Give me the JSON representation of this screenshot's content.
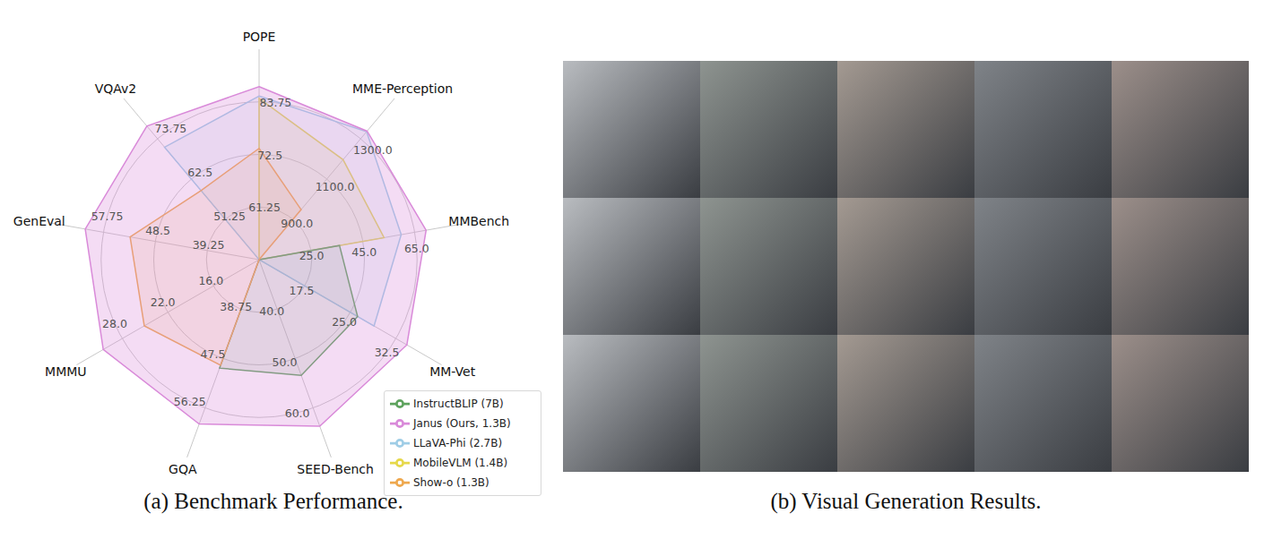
{
  "chart_data": {
    "type": "radar",
    "title": "(a) Benchmark Performance.",
    "axes": [
      {
        "label": "POPE",
        "ylim": [
          50,
          95
        ],
        "yticks": [
          61.25,
          72.5,
          83.75
        ]
      },
      {
        "label": "MME-Perception",
        "ylim": [
          700,
          1500
        ],
        "yticks": [
          {
            "value": 900,
            "label": "900.0"
          },
          {
            "value": 1100,
            "label": "1100.0"
          },
          {
            "value": 1300,
            "label": "1300.0"
          }
        ]
      },
      {
        "label": "MMBench",
        "ylim": [
          5,
          85
        ],
        "yticks": [
          {
            "value": 25,
            "label": "25.0"
          },
          {
            "value": 45,
            "label": "45.0"
          },
          {
            "value": 65,
            "label": "65.0"
          }
        ]
      },
      {
        "label": "MM-Vet",
        "ylim": [
          10,
          40
        ],
        "yticks": [
          17.5,
          {
            "value": 25,
            "label": "25.0"
          },
          32.5
        ]
      },
      {
        "label": "SEED-Bench",
        "ylim": [
          30,
          70
        ],
        "yticks": [
          {
            "value": 40,
            "label": "40.0"
          },
          {
            "value": 50,
            "label": "50.0"
          },
          {
            "value": 60,
            "label": "60.0"
          }
        ]
      },
      {
        "label": "GQA",
        "ylim": [
          30,
          65
        ],
        "yticks": [
          38.75,
          47.5,
          56.25
        ]
      },
      {
        "label": "MMMU",
        "ylim": [
          10,
          34
        ],
        "yticks": [
          {
            "value": 16,
            "label": "16.0"
          },
          {
            "value": 22,
            "label": "22.0"
          },
          {
            "value": 28,
            "label": "28.0"
          }
        ]
      },
      {
        "label": "GenEval",
        "ylim": [
          30,
          67
        ],
        "yticks": [
          39.25,
          48.5,
          57.75
        ]
      },
      {
        "label": "VQAv2",
        "ylim": [
          40,
          85
        ],
        "yticks": [
          51.25,
          62.5,
          73.75
        ]
      }
    ],
    "series": [
      {
        "name": "MobileVLM (1.4B)",
        "color": "#e6d84a",
        "values": [
          84.5,
          1196.2,
          53.2,
          10,
          30,
          30,
          10,
          30,
          40
        ]
      },
      {
        "name": "LLaVA-Phi (2.7B)",
        "color": "#9fcde6",
        "values": [
          85.0,
          1335.1,
          59.8,
          28.9,
          30,
          30,
          10,
          30,
          71.4
        ]
      },
      {
        "name": "InstructBLIP (7B)",
        "color": "#5ea35e",
        "values": [
          50,
          700,
          36.0,
          26.2,
          53.4,
          49.2,
          10,
          30,
          40
        ]
      },
      {
        "name": "Show-o (1.3B)",
        "color": "#eea84e",
        "values": [
          73.8,
          948.4,
          5,
          10,
          30,
          48.7,
          25.1,
          53,
          59.3
        ]
      },
      {
        "name": "Janus (Ours, 1.3B)",
        "color": "#d98ad9",
        "values": [
          87.0,
          1338.0,
          69.4,
          34.3,
          63.7,
          59.1,
          30.5,
          61,
          77.3
        ]
      }
    ],
    "grid": true,
    "legend": "lower right"
  },
  "image_grid": {
    "caption": "(b) Visual Generation Results.",
    "rows": 3,
    "columns": 5
  }
}
